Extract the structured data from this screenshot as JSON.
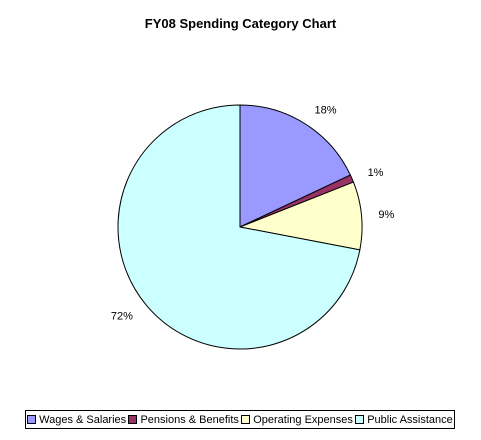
{
  "chart_data": {
    "type": "pie",
    "title": "FY08 Spending Category Chart",
    "categories": [
      "Wages & Salaries",
      "Pensions & Benefits",
      "Operating Expenses",
      "Public Assistance"
    ],
    "values": [
      18,
      1,
      9,
      72
    ],
    "labels": [
      "18%",
      "1%",
      "9%",
      "72%"
    ],
    "colors": [
      "#9999ff",
      "#993366",
      "#ffffcc",
      "#ccffff"
    ],
    "legend_position": "bottom"
  }
}
